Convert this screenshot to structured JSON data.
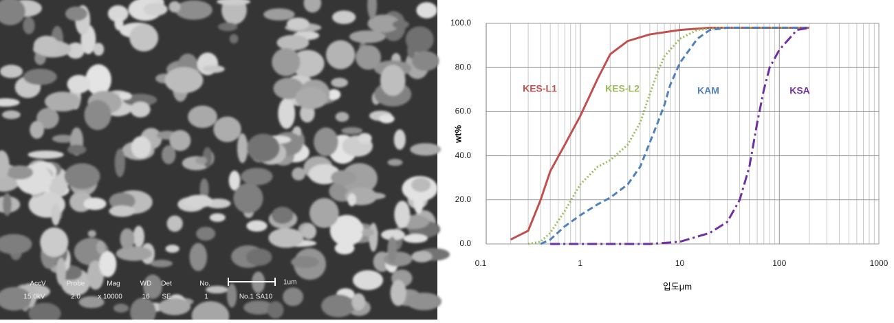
{
  "sem_info": {
    "labels": [
      "AccV",
      "Probe",
      "Mag",
      "WD",
      "Det",
      "No."
    ],
    "values": [
      "15.0kV",
      "2.0",
      "x 10000",
      "16",
      "SE",
      "1",
      "No.1 SA10"
    ],
    "scale": "1um"
  },
  "chart_data": {
    "type": "line",
    "x_label": "입도μm",
    "y_label": "wt%",
    "log_x": true,
    "grid": true,
    "xlim": [
      0.1,
      1000
    ],
    "xticks": [
      0.1,
      1,
      10,
      100,
      1000
    ],
    "ylim": [
      0,
      100
    ],
    "yticks": [
      {
        "value": 0,
        "label": "0.0"
      },
      {
        "value": 20,
        "label": "20.0"
      },
      {
        "value": 40,
        "label": "40.0"
      },
      {
        "value": 60,
        "label": "60.0"
      },
      {
        "value": 80,
        "label": "80.0"
      },
      {
        "value": 100,
        "label": "100.0"
      }
    ],
    "series": [
      {
        "name": "KES-L1",
        "color": "#c0504d",
        "dash": "solid",
        "x": [
          0.2,
          0.3,
          0.4,
          0.5,
          0.7,
          1,
          1.5,
          2,
          3,
          5,
          10,
          20,
          50,
          200
        ],
        "values": [
          2,
          6,
          20,
          33,
          45,
          58,
          75,
          86,
          92,
          95,
          97,
          98,
          98,
          98
        ]
      },
      {
        "name": "KES-L2",
        "color": "#9bbb59",
        "dash": "dotted",
        "x": [
          0.3,
          0.4,
          0.5,
          0.7,
          1,
          1.5,
          2,
          3,
          4,
          5,
          6,
          7,
          10,
          15,
          25,
          200
        ],
        "values": [
          0,
          1,
          5,
          15,
          27,
          35,
          38,
          45,
          55,
          68,
          78,
          85,
          93,
          97,
          98,
          98
        ]
      },
      {
        "name": "KAM",
        "color": "#4f81bd",
        "dash": "dashed",
        "x": [
          0.4,
          0.5,
          0.7,
          1,
          1.5,
          2,
          3,
          4,
          5,
          6,
          7,
          8,
          10,
          15,
          20,
          30,
          200
        ],
        "values": [
          0,
          2,
          8,
          13,
          18,
          21,
          27,
          35,
          46,
          55,
          63,
          72,
          82,
          93,
          97,
          98,
          98
        ]
      },
      {
        "name": "KSA",
        "color": "#7030a0",
        "dash": "dashdot",
        "x": [
          0.5,
          5,
          10,
          20,
          30,
          40,
          50,
          60,
          70,
          80,
          100,
          150,
          200
        ],
        "values": [
          0,
          0,
          1,
          5,
          10,
          20,
          35,
          55,
          70,
          80,
          88,
          97,
          98
        ]
      }
    ]
  }
}
